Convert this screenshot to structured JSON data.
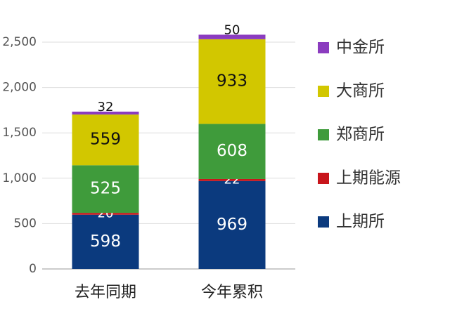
{
  "chart_data": {
    "type": "stacked_bar",
    "categories": [
      "去年同期",
      "今年累积"
    ],
    "series": [
      {
        "name": "上期所",
        "color": "#0b3a7e",
        "values": [
          598,
          969
        ]
      },
      {
        "name": "上期能源",
        "color": "#c8151b",
        "values": [
          20,
          22
        ]
      },
      {
        "name": "郑商所",
        "color": "#3f9b3b",
        "values": [
          525,
          608
        ]
      },
      {
        "name": "大商所",
        "color": "#d2c700",
        "values": [
          559,
          933
        ]
      },
      {
        "name": "中金所",
        "color": "#8b3cbf",
        "values": [
          32,
          50
        ]
      }
    ],
    "ylim": [
      0,
      2500
    ],
    "yticks": [
      0,
      {
        "value": 500,
        "label": "500"
      },
      {
        "value": 1000,
        "label": "1,000"
      },
      {
        "value": 1500,
        "label": "1,500"
      },
      {
        "value": 2000,
        "label": "2,000"
      },
      {
        "value": 2500,
        "label": "2,500"
      }
    ],
    "grid": true,
    "legend": "right"
  }
}
